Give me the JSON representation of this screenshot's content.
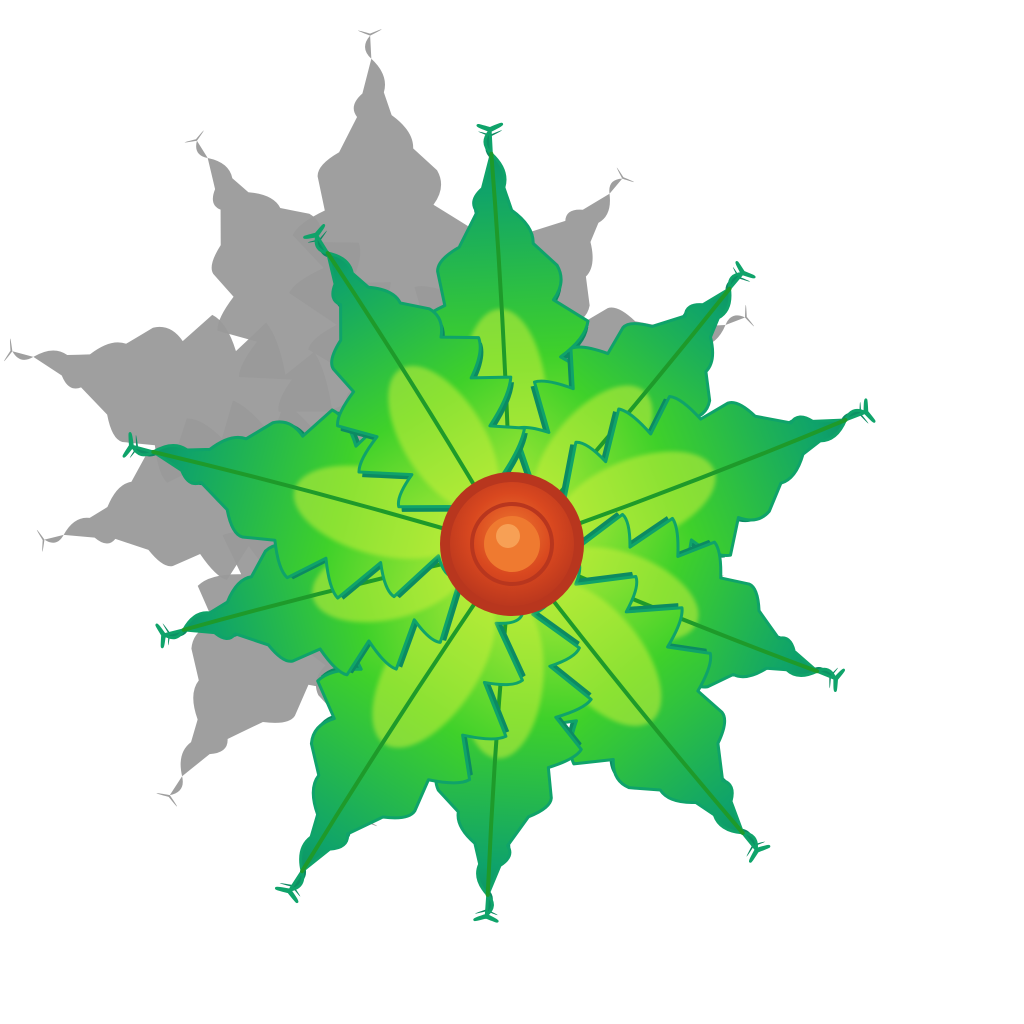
{
  "sprite": {
    "icon": "fern-plant-icon",
    "leaf_count": 10,
    "colors": {
      "background": "#ffffff",
      "shadow": "#9a9a9a",
      "leaf_light": "#c8f03a",
      "leaf_mid": "#3fd12a",
      "leaf_edge": "#0fa36a",
      "leaf_dark": "#0c8a62",
      "vein": "#1e9a2a",
      "center_outer": "#b8361e",
      "center_mid": "#d9481f",
      "center_inner": "#ef7a30",
      "center_highlight": "#f7a055"
    }
  }
}
